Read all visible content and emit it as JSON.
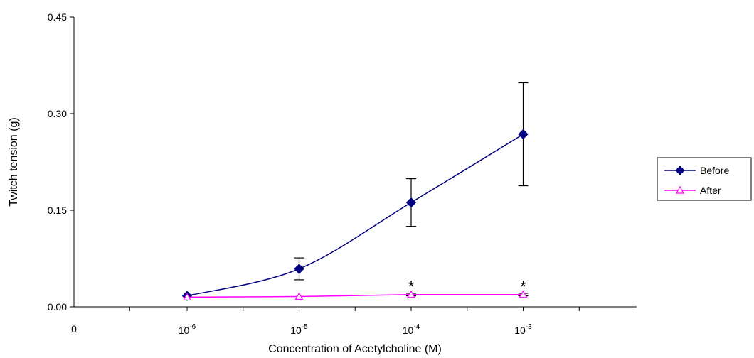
{
  "chart_data": {
    "type": "line",
    "title": "",
    "xlabel": "Concentration of Acetylcholine (M)",
    "ylabel": "Twitch tension (g)",
    "x_scale": "log",
    "x_origin_label": "0",
    "x_ticks": [
      {
        "value": 1e-06,
        "base": "10",
        "exp": "-6"
      },
      {
        "value": 1e-05,
        "base": "10",
        "exp": "-5"
      },
      {
        "value": 0.0001,
        "base": "10",
        "exp": "-4"
      },
      {
        "value": 0.001,
        "base": "10",
        "exp": "-3"
      }
    ],
    "y_ticks": [
      "0.00",
      "0.15",
      "0.30",
      "0.45"
    ],
    "ylim": [
      0,
      0.45
    ],
    "grid": false,
    "legend_position": "right",
    "series": [
      {
        "name": "Before",
        "color": "#000080",
        "marker": "diamond",
        "smooth": true,
        "x": [
          1e-06,
          1e-05,
          0.0001,
          0.001
        ],
        "y": [
          0.017,
          0.059,
          0.162,
          0.268
        ],
        "error": [
          0.0,
          0.017,
          0.037,
          0.08
        ]
      },
      {
        "name": "After",
        "color": "#ff00ff",
        "marker": "triangle",
        "smooth": false,
        "x": [
          1e-06,
          1e-05,
          0.0001,
          0.001
        ],
        "y": [
          0.015,
          0.016,
          0.019,
          0.019
        ],
        "error": [
          0.0,
          0.0,
          0.002,
          0.002
        ]
      }
    ],
    "annotations": [
      {
        "text": "*",
        "x": 0.0001,
        "y": 0.021
      },
      {
        "text": "*",
        "x": 0.001,
        "y": 0.021
      }
    ]
  }
}
